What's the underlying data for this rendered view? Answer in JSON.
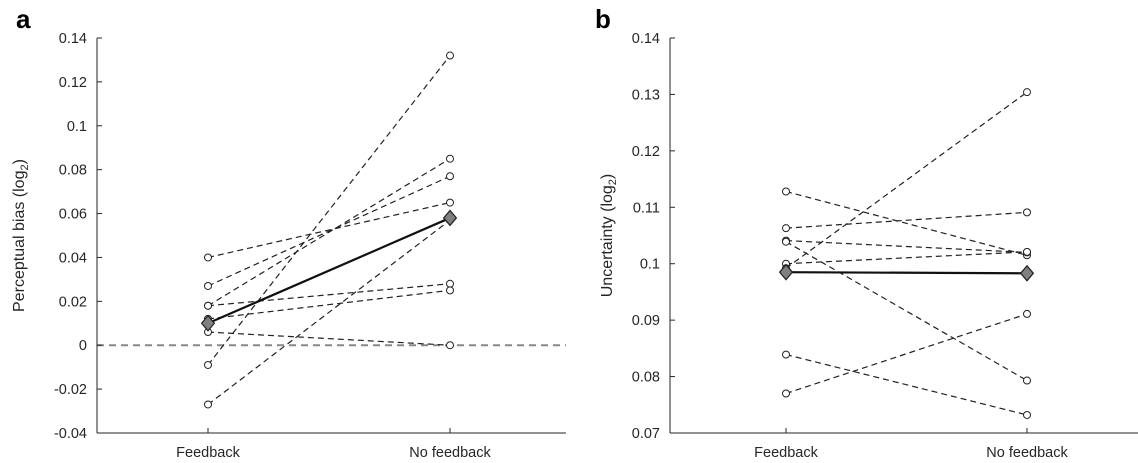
{
  "chart_data": [
    {
      "panel_label": "a",
      "type": "line",
      "ylabel": "Perceptual bias (log",
      "ylabel_sub": "2",
      "ylabel_close": ")",
      "categories": [
        "Feedback",
        "No feedback"
      ],
      "ylim": [
        -0.04,
        0.14
      ],
      "yticks": [
        -0.04,
        -0.02,
        0,
        0.02,
        0.04,
        0.06,
        0.08,
        0.1,
        0.12,
        0.14
      ],
      "ytick_labels": [
        "-0.04",
        "-0.02",
        "0",
        "0.02",
        "0.04",
        "0.06",
        "0.08",
        "0.1",
        "0.12",
        "0.14"
      ],
      "reference_line": 0,
      "individual_series": [
        {
          "values": [
            0.04,
            0.065
          ]
        },
        {
          "values": [
            0.027,
            0.077
          ]
        },
        {
          "values": [
            0.018,
            0.085
          ]
        },
        {
          "values": [
            0.018,
            0.028
          ]
        },
        {
          "values": [
            0.012,
            0.025
          ]
        },
        {
          "values": [
            0.006,
            0.0
          ]
        },
        {
          "values": [
            -0.009,
            0.132
          ]
        },
        {
          "values": [
            -0.027,
            0.057
          ]
        }
      ],
      "mean_series": {
        "values": [
          0.01,
          0.058
        ]
      },
      "colors": {
        "individual": "#222222",
        "mean_line": "#111111",
        "mean_marker": "#808080",
        "reference": "#888888"
      }
    },
    {
      "panel_label": "b",
      "type": "line",
      "ylabel": "Uncertainty (log",
      "ylabel_sub": "2",
      "ylabel_close": ")",
      "categories": [
        "Feedback",
        "No feedback"
      ],
      "ylim": [
        0.07,
        0.14
      ],
      "yticks": [
        0.07,
        0.08,
        0.09,
        0.1,
        0.11,
        0.12,
        0.13,
        0.14
      ],
      "ytick_labels": [
        "0.07",
        "0.08",
        "0.09",
        "0.1",
        "0.11",
        "0.12",
        "0.13",
        "0.14"
      ],
      "individual_series": [
        {
          "values": [
            0.1128,
            0.1015
          ]
        },
        {
          "values": [
            0.1063,
            0.1091
          ]
        },
        {
          "values": [
            0.1041,
            0.102
          ]
        },
        {
          "values": [
            0.1039,
            0.0793
          ]
        },
        {
          "values": [
            0.1,
            0.1021
          ]
        },
        {
          "values": [
            0.0992,
            0.1304
          ]
        },
        {
          "values": [
            0.0839,
            0.0732
          ]
        },
        {
          "values": [
            0.077,
            0.0911
          ]
        }
      ],
      "mean_series": {
        "values": [
          0.0985,
          0.0983
        ]
      },
      "colors": {
        "individual": "#222222",
        "mean_line": "#111111",
        "mean_marker": "#808080"
      }
    }
  ]
}
